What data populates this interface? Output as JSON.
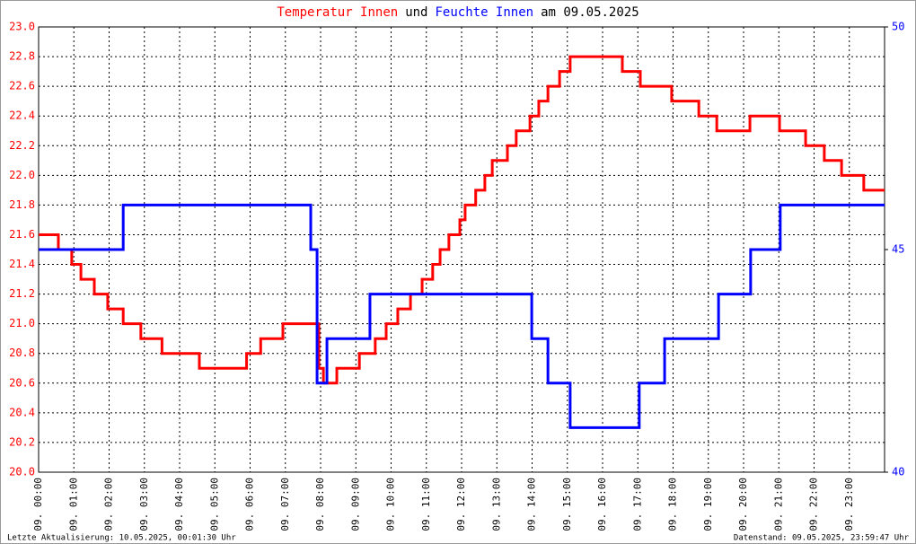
{
  "chart_data": {
    "type": "step-line",
    "title": [
      {
        "text": "Temperatur Innen",
        "color": "#ff0000"
      },
      {
        "text": "und",
        "color": "#000000"
      },
      {
        "text": "Feuchte Innen",
        "color": "#0000ff"
      },
      {
        "text": "am 09.05.2025",
        "color": "#000000"
      }
    ],
    "footer_left": "Letzte Aktualisierung: 10.05.2025, 00:01:30 Uhr",
    "footer_right": "Datenstand: 09.05.2025, 23:59:47 Uhr",
    "xlim": [
      0,
      24
    ],
    "xticks": [
      {
        "value": 0,
        "label": "09. 00:00"
      },
      {
        "value": 1,
        "label": "09. 01:00"
      },
      {
        "value": 2,
        "label": "09. 02:00"
      },
      {
        "value": 3,
        "label": "09. 03:00"
      },
      {
        "value": 4,
        "label": "09. 04:00"
      },
      {
        "value": 5,
        "label": "09. 05:00"
      },
      {
        "value": 6,
        "label": "09. 06:00"
      },
      {
        "value": 7,
        "label": "09. 07:00"
      },
      {
        "value": 8,
        "label": "09. 08:00"
      },
      {
        "value": 9,
        "label": "09. 09:00"
      },
      {
        "value": 10,
        "label": "09. 10:00"
      },
      {
        "value": 11,
        "label": "09. 11:00"
      },
      {
        "value": 12,
        "label": "09. 12:00"
      },
      {
        "value": 13,
        "label": "09. 13:00"
      },
      {
        "value": 14,
        "label": "09. 14:00"
      },
      {
        "value": 15,
        "label": "09. 15:00"
      },
      {
        "value": 16,
        "label": "09. 16:00"
      },
      {
        "value": 17,
        "label": "09. 17:00"
      },
      {
        "value": 18,
        "label": "09. 18:00"
      },
      {
        "value": 19,
        "label": "09. 19:00"
      },
      {
        "value": 20,
        "label": "09. 20:00"
      },
      {
        "value": 21,
        "label": "09. 21:00"
      },
      {
        "value": 22,
        "label": "09. 22:00"
      },
      {
        "value": 23,
        "label": "09. 23:00"
      }
    ],
    "ylim": [
      20,
      23
    ],
    "yticks": [
      {
        "value": 20,
        "label": "20.0"
      },
      20.2,
      20.4,
      20.6,
      20.8,
      {
        "value": 21,
        "label": "21.0"
      },
      21.2,
      21.4,
      21.6,
      21.8,
      {
        "value": 22,
        "label": "22.0"
      },
      22.2,
      22.4,
      22.6,
      22.8,
      {
        "value": 23,
        "label": "23.0"
      }
    ],
    "y2lim": [
      40,
      50
    ],
    "y2ticks": [
      40,
      45,
      50
    ],
    "y_color": "#ff0000",
    "y2_color": "#0000ff",
    "grid": true,
    "series": [
      {
        "name": "Temperatur Innen",
        "color": "#ff0000",
        "x": [
          0,
          0.56,
          0.94,
          1.2,
          1.58,
          1.96,
          2.4,
          2.9,
          3.5,
          4.56,
          5.9,
          6.3,
          6.93,
          7.95,
          8.08,
          8.46,
          9.1,
          9.55,
          9.86,
          10.19,
          10.55,
          10.88,
          11.18,
          11.39,
          11.64,
          11.95,
          12.1,
          12.4,
          12.66,
          12.87,
          13.3,
          13.55,
          13.94,
          14.19,
          14.45,
          14.78,
          15.08,
          16.56,
          17.07,
          17.96,
          18.73,
          19.24,
          20.18,
          21.02,
          21.76,
          22.29,
          22.78,
          23.41,
          24
        ],
        "values": [
          21.6,
          21.5,
          21.4,
          21.3,
          21.2,
          21.1,
          21.0,
          20.9,
          20.8,
          20.7,
          20.8,
          20.9,
          21.0,
          20.7,
          20.6,
          20.7,
          20.8,
          20.9,
          21.0,
          21.1,
          21.2,
          21.3,
          21.4,
          21.5,
          21.6,
          21.7,
          21.8,
          21.9,
          22.0,
          22.1,
          22.2,
          22.3,
          22.4,
          22.5,
          22.6,
          22.7,
          22.8,
          22.7,
          22.6,
          22.5,
          22.4,
          22.3,
          22.4,
          22.3,
          22.2,
          22.1,
          22.0,
          21.9,
          21.9
        ]
      },
      {
        "name": "Feuchte Innen",
        "color": "#0000ff",
        "axis": "y2",
        "x": [
          0,
          2.4,
          7.72,
          7.9,
          8.18,
          9.4,
          13.99,
          14.45,
          15.08,
          16.74,
          17.04,
          17.76,
          19.29,
          20.2,
          21.04,
          24
        ],
        "values": [
          45,
          46,
          45,
          42,
          43,
          44,
          43,
          42,
          41,
          41,
          42,
          43,
          44,
          45,
          46,
          46
        ]
      }
    ]
  }
}
